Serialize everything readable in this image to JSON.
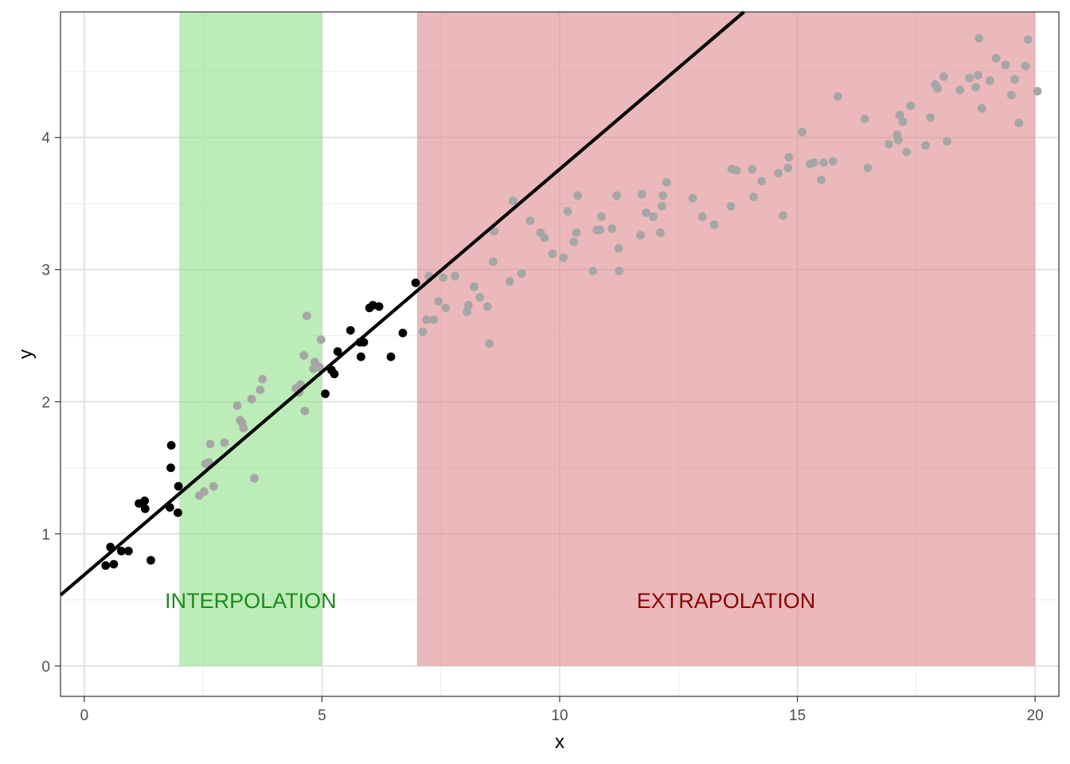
{
  "chart_data": {
    "type": "scatter",
    "xlabel": "x",
    "ylabel": "y",
    "xlim": [
      -0.5,
      20.5
    ],
    "ylim": [
      -0.23,
      4.95
    ],
    "x_ticks": [
      0,
      5,
      10,
      15,
      20
    ],
    "y_ticks": [
      0,
      1,
      2,
      3,
      4
    ],
    "grid": true,
    "regions": [
      {
        "name": "interpolation",
        "label": "INTERPOLATION",
        "x_range": [
          2,
          5
        ],
        "fill": "#90e088",
        "text_color": "#1a8c1a",
        "label_x": 3.5,
        "label_y": 0.5
      },
      {
        "name": "extrapolation",
        "label": "EXTRAPOLATION",
        "x_range": [
          7,
          20
        ],
        "fill": "#dd8a8d",
        "text_color": "#8b0000",
        "label_x": 13.5,
        "label_y": 0.5
      }
    ],
    "fit_line": {
      "intercept": 0.69,
      "slope": 0.307,
      "color": "#000000"
    },
    "series": [
      {
        "kind": "training",
        "color": "#000000",
        "points": [
          [
            0.45,
            0.76
          ],
          [
            0.55,
            0.9
          ],
          [
            0.62,
            0.77
          ],
          [
            0.78,
            0.87
          ],
          [
            0.93,
            0.87
          ],
          [
            1.15,
            1.23
          ],
          [
            1.27,
            1.25
          ],
          [
            1.28,
            1.19
          ],
          [
            1.4,
            0.8
          ],
          [
            1.8,
            1.2
          ],
          [
            1.82,
            1.5
          ],
          [
            1.83,
            1.67
          ],
          [
            1.97,
            1.16
          ],
          [
            1.98,
            1.36
          ],
          [
            5.07,
            2.06
          ],
          [
            5.2,
            2.24
          ],
          [
            5.26,
            2.21
          ],
          [
            5.33,
            2.38
          ],
          [
            5.6,
            2.54
          ],
          [
            5.8,
            2.45
          ],
          [
            5.82,
            2.34
          ],
          [
            5.88,
            2.45
          ],
          [
            6.0,
            2.71
          ],
          [
            6.07,
            2.73
          ],
          [
            6.2,
            2.72
          ],
          [
            6.45,
            2.34
          ],
          [
            6.7,
            2.52
          ],
          [
            6.97,
            2.9
          ]
        ]
      },
      {
        "kind": "held-out",
        "color": "#a6a6a6",
        "points": [
          [
            2.42,
            1.29
          ],
          [
            2.52,
            1.32
          ],
          [
            2.55,
            1.53
          ],
          [
            2.62,
            1.54
          ],
          [
            2.65,
            1.68
          ],
          [
            2.72,
            1.36
          ],
          [
            2.95,
            1.69
          ],
          [
            3.22,
            1.97
          ],
          [
            3.28,
            1.86
          ],
          [
            3.32,
            1.84
          ],
          [
            3.35,
            1.8
          ],
          [
            3.52,
            2.02
          ],
          [
            3.58,
            1.42
          ],
          [
            3.7,
            2.09
          ],
          [
            3.75,
            2.17
          ],
          [
            4.45,
            2.1
          ],
          [
            4.55,
            2.13
          ],
          [
            4.62,
            2.35
          ],
          [
            4.64,
            1.93
          ],
          [
            4.68,
            2.65
          ],
          [
            4.82,
            2.25
          ],
          [
            4.85,
            2.3
          ],
          [
            4.95,
            2.26
          ],
          [
            4.98,
            2.47
          ],
          [
            4.52,
            2.07
          ],
          [
            7.12,
            2.53
          ],
          [
            7.2,
            2.62
          ],
          [
            7.25,
            2.95
          ],
          [
            7.35,
            2.62
          ],
          [
            7.45,
            2.76
          ],
          [
            7.55,
            2.94
          ],
          [
            7.6,
            2.71
          ],
          [
            7.8,
            2.95
          ],
          [
            8.05,
            2.68
          ],
          [
            8.08,
            2.73
          ],
          [
            8.2,
            2.87
          ],
          [
            8.32,
            2.79
          ],
          [
            8.48,
            2.72
          ],
          [
            8.52,
            2.44
          ],
          [
            8.6,
            3.06
          ],
          [
            8.62,
            3.29
          ],
          [
            8.95,
            2.91
          ],
          [
            9.02,
            3.52
          ],
          [
            9.2,
            2.97
          ],
          [
            9.38,
            3.37
          ],
          [
            9.6,
            3.28
          ],
          [
            9.68,
            3.24
          ],
          [
            9.85,
            3.12
          ],
          [
            10.08,
            3.09
          ],
          [
            10.17,
            3.44
          ],
          [
            10.3,
            3.21
          ],
          [
            10.35,
            3.28
          ],
          [
            10.38,
            3.56
          ],
          [
            10.7,
            2.99
          ],
          [
            10.78,
            3.3
          ],
          [
            10.85,
            3.3
          ],
          [
            10.88,
            3.4
          ],
          [
            11.1,
            3.31
          ],
          [
            11.2,
            3.56
          ],
          [
            11.24,
            3.16
          ],
          [
            11.25,
            2.99
          ],
          [
            11.7,
            3.26
          ],
          [
            11.73,
            3.57
          ],
          [
            11.82,
            3.43
          ],
          [
            11.97,
            3.4
          ],
          [
            12.12,
            3.28
          ],
          [
            12.15,
            3.48
          ],
          [
            12.17,
            3.56
          ],
          [
            12.25,
            3.66
          ],
          [
            12.8,
            3.54
          ],
          [
            13.0,
            3.4
          ],
          [
            13.25,
            3.34
          ],
          [
            13.6,
            3.48
          ],
          [
            13.62,
            3.76
          ],
          [
            13.72,
            3.75
          ],
          [
            14.05,
            3.76
          ],
          [
            14.08,
            3.55
          ],
          [
            14.25,
            3.67
          ],
          [
            14.6,
            3.73
          ],
          [
            14.7,
            3.41
          ],
          [
            14.8,
            3.77
          ],
          [
            14.82,
            3.85
          ],
          [
            15.1,
            4.04
          ],
          [
            15.27,
            3.8
          ],
          [
            15.35,
            3.81
          ],
          [
            15.5,
            3.68
          ],
          [
            15.55,
            3.81
          ],
          [
            15.75,
            3.82
          ],
          [
            15.85,
            4.31
          ],
          [
            16.42,
            4.14
          ],
          [
            16.48,
            3.77
          ],
          [
            16.92,
            3.95
          ],
          [
            17.1,
            4.02
          ],
          [
            17.12,
            3.98
          ],
          [
            17.15,
            4.17
          ],
          [
            17.22,
            4.12
          ],
          [
            17.3,
            3.89
          ],
          [
            17.38,
            4.24
          ],
          [
            17.7,
            3.94
          ],
          [
            17.8,
            4.15
          ],
          [
            17.9,
            4.4
          ],
          [
            17.95,
            4.37
          ],
          [
            18.08,
            4.46
          ],
          [
            18.15,
            3.97
          ],
          [
            18.42,
            4.36
          ],
          [
            18.62,
            4.45
          ],
          [
            18.75,
            4.38
          ],
          [
            18.8,
            4.47
          ],
          [
            18.82,
            4.75
          ],
          [
            18.88,
            4.22
          ],
          [
            19.05,
            4.43
          ],
          [
            19.18,
            4.6
          ],
          [
            19.38,
            4.55
          ],
          [
            19.5,
            4.32
          ],
          [
            19.57,
            4.44
          ],
          [
            19.66,
            4.11
          ],
          [
            19.8,
            4.54
          ],
          [
            19.85,
            4.74
          ],
          [
            20.05,
            4.35
          ]
        ]
      }
    ]
  }
}
